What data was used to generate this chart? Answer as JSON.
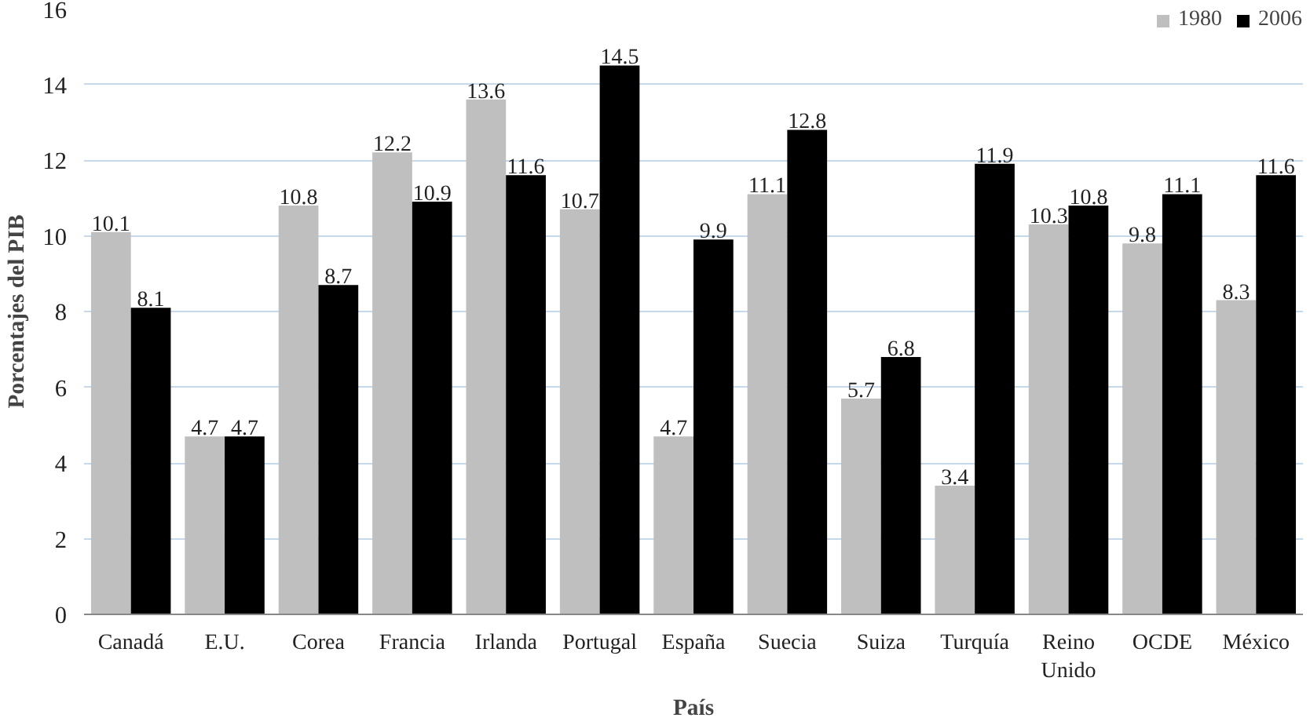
{
  "chart_data": {
    "type": "bar",
    "xlabel": "País",
    "ylabel": "Porcentajes del PIB",
    "categories": [
      "Canadá",
      "E.U.",
      "Corea",
      "Francia",
      "Irlanda",
      "Portugal",
      "España",
      "Suecia",
      "Suiza",
      "Turquía",
      "Reino Unido",
      "OCDE",
      "México"
    ],
    "series": [
      {
        "name": "1980",
        "color": "#bfbfbf",
        "values": [
          10.1,
          4.7,
          10.8,
          12.2,
          13.6,
          10.7,
          4.7,
          11.1,
          5.7,
          3.4,
          10.3,
          9.8,
          8.3
        ]
      },
      {
        "name": "2006",
        "color": "#000000",
        "values": [
          8.1,
          4.7,
          8.7,
          10.9,
          11.6,
          14.5,
          9.9,
          12.8,
          6.8,
          11.9,
          10.8,
          11.1,
          11.6
        ]
      }
    ],
    "ylim": [
      0,
      16
    ],
    "yticks": [
      0,
      2,
      4,
      6,
      8,
      10,
      12,
      14,
      16
    ],
    "grid": "y",
    "legend": "top right",
    "data_labels": true
  }
}
